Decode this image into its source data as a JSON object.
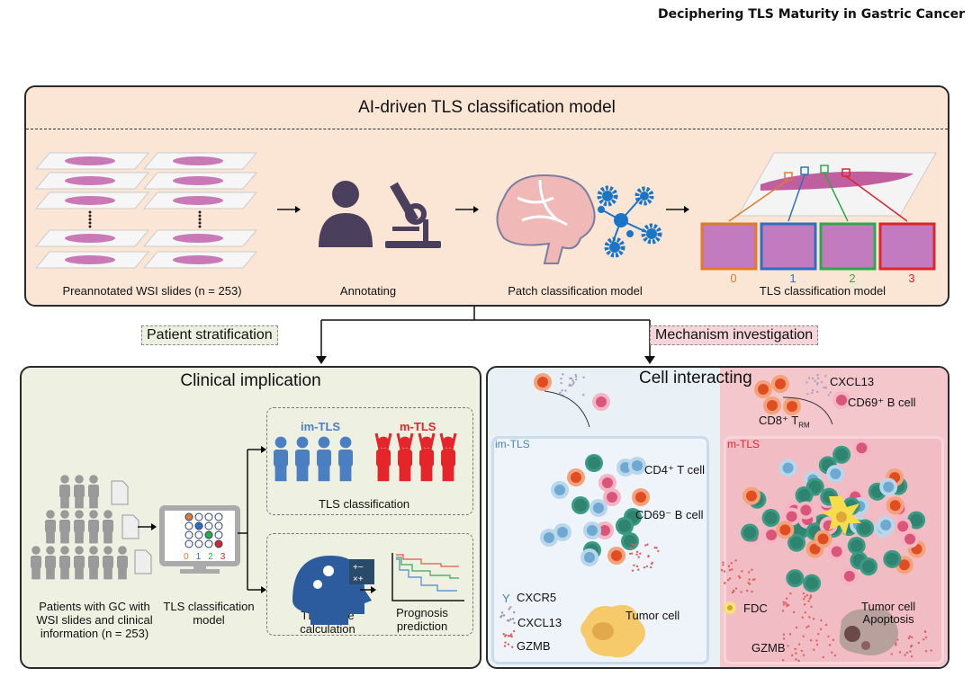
{
  "header": {
    "title": "Deciphering TLS Maturity in Gastric Cancer"
  },
  "top": {
    "title": "AI-driven TLS classification model",
    "steps": [
      {
        "label": "Preannotated WSI slides (n = 253)"
      },
      {
        "label": "Annotating"
      },
      {
        "label": "Patch classification model"
      },
      {
        "label": "TLS classification model"
      }
    ],
    "patch_classes": [
      "0",
      "1",
      "2",
      "3"
    ],
    "class_colors": [
      "#e07b2a",
      "#2f6fc0",
      "#2ea84a",
      "#d9262b"
    ]
  },
  "branches": {
    "left": "Patient stratification",
    "right": "Mechanism investigation"
  },
  "clinical": {
    "title": "Clinical implication",
    "patients_label": [
      "Patients with GC with",
      "WSI slides and clinical",
      "information (n = 253)"
    ],
    "model_label": [
      "TLS classification",
      "model"
    ],
    "model_classes": [
      "0",
      "1",
      "2",
      "3"
    ],
    "im_tls": "im-TLS",
    "m_tls": "m-TLS",
    "classification_label": "TLS classification",
    "score_label": [
      "TLS score",
      "calculation"
    ],
    "prognosis_label": [
      "Prognosis",
      "prediction"
    ]
  },
  "cells": {
    "title": "Cell interacting",
    "cxcl13_top": "CXCL13",
    "cd69_pos": "CD69⁺ B cell",
    "cd8": "CD8⁺ T",
    "cd8_sub": "RM",
    "im_tls": "im-TLS",
    "m_tls": "m-TLS",
    "cd4": "CD4⁺ T cell",
    "cd69_neg": "CD69⁻ B cell",
    "legend": [
      "CXCR5",
      "CXCL13",
      "GZMB"
    ],
    "tumor": "Tumor cell",
    "fdc": "FDC",
    "apoptosis": [
      "Tumor cell",
      "Apoptosis"
    ],
    "gzmb": "GZMB"
  },
  "colors": {
    "top_bg": "#fbe6d6",
    "clinical_bg": "#eef0e1",
    "im_bg": "#e9f1f7",
    "m_bg": "#f4c7cd",
    "blue": "#4a7fc1",
    "red": "#e4252a"
  }
}
